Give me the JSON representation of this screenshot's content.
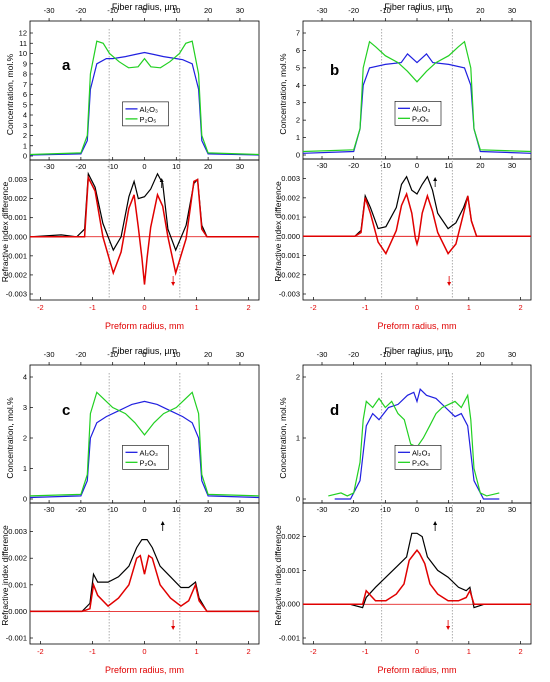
{
  "labels": {
    "fiber_axis": "Fiber radius, µm",
    "preform_axis": "Preform radius, mm",
    "conc_axis": "Concentration, mol.%",
    "ri_axis": "Refractive index difference",
    "al2o3": "Al₂O₃",
    "p2o5": "P₂O₅"
  },
  "colors": {
    "al2o3": "#2020e0",
    "p2o5": "#22d022",
    "ri_black": "#000000",
    "ri_red": "#e00000",
    "preform_axis_text": "#e00000"
  },
  "chart_data": [
    {
      "type": "line",
      "panel": "a",
      "fiber_xlim": [
        -36,
        36
      ],
      "fiber_ticks": [
        -30,
        -20,
        -10,
        0,
        10,
        20,
        30
      ],
      "conc_ylim": [
        0,
        12
      ],
      "conc_ticks": [
        0,
        1,
        2,
        3,
        4,
        5,
        6,
        7,
        8,
        9,
        10,
        11,
        12
      ],
      "series_conc": [
        {
          "name": "Al₂O₃",
          "x": [
            -36,
            -20,
            -18,
            -17,
            -15,
            -12,
            -10,
            -6,
            -3,
            0,
            3,
            6,
            10,
            12,
            15,
            17,
            18,
            20,
            36
          ],
          "y": [
            0.1,
            0.2,
            1.5,
            6.5,
            9.0,
            9.5,
            9.5,
            9.7,
            9.9,
            10.1,
            9.9,
            9.7,
            9.5,
            9.4,
            9.0,
            6.5,
            1.5,
            0.2,
            0.1
          ]
        },
        {
          "name": "P₂O₅",
          "x": [
            -36,
            -20,
            -18,
            -17,
            -15,
            -13,
            -11,
            -8,
            -5,
            -2,
            0,
            2,
            5,
            8,
            11,
            13,
            15,
            17,
            18,
            20,
            36
          ],
          "y": [
            0.15,
            0.3,
            2.0,
            8.0,
            11.2,
            11.0,
            10.0,
            9.2,
            8.6,
            8.7,
            9.5,
            8.7,
            8.6,
            9.2,
            10.0,
            11.0,
            11.2,
            8.0,
            2.0,
            0.3,
            0.15
          ]
        }
      ],
      "preform_xlim": [
        -2.2,
        2.2
      ],
      "preform_ticks": [
        -2,
        -1,
        0,
        1,
        2
      ],
      "ri_ylim": [
        -0.003,
        0.0035
      ],
      "ri_ticks": [
        -0.003,
        -0.002,
        -0.001,
        0.0,
        0.001,
        0.002,
        0.003
      ],
      "series_ri": [
        {
          "x": [
            -2.2,
            -1.6,
            -1.3,
            -1.15,
            -1.08,
            -0.95,
            -0.8,
            -0.6,
            -0.45,
            -0.3,
            -0.2,
            -0.12,
            0,
            0.12,
            0.25,
            0.35,
            0.45,
            0.6,
            0.8,
            0.95,
            1.02,
            1.1,
            1.2,
            2.2
          ],
          "y": [
            0.0,
            0.0001,
            0.0,
            0.0004,
            0.0033,
            0.0026,
            0.0007,
            -0.0007,
            0.0,
            0.0021,
            0.0029,
            0.002,
            0.0021,
            0.0025,
            0.0033,
            0.0028,
            0.0004,
            -0.0007,
            0.0006,
            0.0028,
            0.003,
            0.0006,
            0.0,
            0.0
          ]
        },
        {
          "x": [
            -2.2,
            -1.6,
            -1.3,
            -1.15,
            -1.08,
            -0.95,
            -0.8,
            -0.6,
            -0.45,
            -0.3,
            -0.2,
            -0.12,
            -0.05,
            0,
            0.05,
            0.12,
            0.25,
            0.35,
            0.45,
            0.6,
            0.8,
            0.95,
            1.02,
            1.1,
            1.2,
            2.2
          ],
          "y": [
            0.0,
            0.0,
            0.0,
            0.0,
            0.0031,
            0.0024,
            0.0,
            -0.0019,
            -0.0008,
            0.0015,
            0.0022,
            0.0005,
            -0.0011,
            -0.0025,
            -0.0011,
            0.0005,
            0.0022,
            0.0016,
            0.0,
            -0.0019,
            -0.0001,
            0.0029,
            0.003,
            0.0004,
            0.0,
            0.0
          ]
        }
      ],
      "arrow_up_x": 0.33,
      "arrow_down_x": 0.55
    },
    {
      "type": "line",
      "panel": "b",
      "fiber_xlim": [
        -36,
        36
      ],
      "fiber_ticks": [
        -30,
        -20,
        -10,
        0,
        10,
        20,
        30
      ],
      "conc_ylim": [
        0,
        7
      ],
      "conc_ticks": [
        0,
        1,
        2,
        3,
        4,
        5,
        6,
        7
      ],
      "series_conc": [
        {
          "name": "Al₂O₃",
          "x": [
            -36,
            -20,
            -18,
            -17,
            -15,
            -10,
            -5,
            -3,
            0,
            3,
            5,
            10,
            15,
            17,
            18,
            20,
            36
          ],
          "y": [
            0.1,
            0.2,
            1.5,
            4.0,
            5.0,
            5.2,
            5.3,
            5.8,
            5.3,
            5.8,
            5.3,
            5.2,
            5.0,
            4.0,
            1.5,
            0.2,
            0.1
          ]
        },
        {
          "name": "P₂O₅",
          "x": [
            -36,
            -20,
            -18,
            -17,
            -15,
            -13,
            -10,
            -6,
            -3,
            0,
            3,
            6,
            10,
            13,
            15,
            17,
            18,
            20,
            36
          ],
          "y": [
            0.2,
            0.3,
            1.5,
            5.0,
            6.5,
            6.2,
            5.7,
            5.3,
            4.8,
            4.2,
            4.8,
            5.3,
            5.7,
            6.2,
            6.5,
            5.0,
            1.5,
            0.3,
            0.2
          ]
        }
      ],
      "preform_xlim": [
        -2.2,
        2.2
      ],
      "preform_ticks": [
        -2,
        -1,
        0,
        1,
        2
      ],
      "ri_ylim": [
        -0.003,
        0.0035
      ],
      "ri_ticks": [
        -0.003,
        -0.002,
        -0.001,
        0.0,
        0.001,
        0.002,
        0.003
      ],
      "series_ri": [
        {
          "x": [
            -2.2,
            -1.2,
            -1.08,
            -1.0,
            -0.9,
            -0.75,
            -0.6,
            -0.4,
            -0.3,
            -0.2,
            -0.1,
            0.0,
            0.1,
            0.2,
            0.3,
            0.4,
            0.6,
            0.75,
            0.9,
            0.98,
            1.05,
            1.15,
            2.2
          ],
          "y": [
            0.0,
            0.0,
            0.0003,
            0.0021,
            0.0015,
            0.0004,
            0.0005,
            0.0015,
            0.0027,
            0.0031,
            0.0024,
            0.0022,
            0.0027,
            0.0031,
            0.0024,
            0.0012,
            0.0004,
            0.0007,
            0.0015,
            0.0021,
            0.0008,
            0.0,
            0.0
          ]
        },
        {
          "x": [
            -2.2,
            -1.2,
            -1.08,
            -1.0,
            -0.9,
            -0.75,
            -0.6,
            -0.4,
            -0.3,
            -0.2,
            -0.1,
            -0.03,
            0,
            0.03,
            0.1,
            0.2,
            0.3,
            0.4,
            0.6,
            0.75,
            0.9,
            0.98,
            1.05,
            1.15,
            2.2
          ],
          "y": [
            0.0,
            0.0,
            0.0002,
            0.002,
            0.0012,
            -0.0003,
            -0.0009,
            0.0003,
            0.0016,
            0.0022,
            0.0012,
            -0.0001,
            -0.0004,
            -0.0001,
            0.0012,
            0.0021,
            0.0013,
            0.0002,
            -0.0009,
            -0.0004,
            0.0012,
            0.0021,
            0.0008,
            0.0,
            0.0
          ]
        }
      ],
      "arrow_up_x": 0.35,
      "arrow_down_x": 0.62
    },
    {
      "type": "line",
      "panel": "c",
      "fiber_xlim": [
        -36,
        36
      ],
      "fiber_ticks": [
        -30,
        -20,
        -10,
        0,
        10,
        20,
        30
      ],
      "conc_ylim": [
        0,
        4
      ],
      "conc_ticks": [
        0,
        1,
        2,
        3,
        4
      ],
      "series_conc": [
        {
          "name": "Al₂O₃",
          "x": [
            -36,
            -20,
            -18,
            -17,
            -15,
            -12,
            -8,
            -4,
            0,
            4,
            8,
            12,
            15,
            17,
            18,
            20,
            36
          ],
          "y": [
            0.05,
            0.1,
            0.6,
            2.0,
            2.5,
            2.7,
            2.9,
            3.1,
            3.2,
            3.1,
            2.9,
            2.7,
            2.5,
            2.0,
            0.6,
            0.1,
            0.05
          ]
        },
        {
          "name": "P₂O₅",
          "x": [
            -36,
            -20,
            -18,
            -17,
            -15,
            -13,
            -10,
            -6,
            -3,
            0,
            3,
            6,
            10,
            13,
            15,
            17,
            18,
            20,
            36
          ],
          "y": [
            0.1,
            0.15,
            0.8,
            2.8,
            3.5,
            3.3,
            3.0,
            2.8,
            2.5,
            2.1,
            2.5,
            2.8,
            3.0,
            3.3,
            3.5,
            2.8,
            0.8,
            0.15,
            0.1
          ]
        }
      ],
      "preform_xlim": [
        -2.2,
        2.2
      ],
      "preform_ticks": [
        -2,
        -1,
        0,
        1,
        2
      ],
      "ri_ylim": [
        -0.001,
        0.0037
      ],
      "ri_ticks": [
        -0.001,
        0.0,
        0.001,
        0.002,
        0.003
      ],
      "series_ri": [
        {
          "x": [
            -2.2,
            -1.2,
            -1.05,
            -0.98,
            -0.9,
            -0.7,
            -0.5,
            -0.3,
            -0.15,
            -0.05,
            0.05,
            0.15,
            0.3,
            0.5,
            0.7,
            0.85,
            0.98,
            1.05,
            1.2,
            2.2
          ],
          "y": [
            0.0,
            0.0,
            0.0003,
            0.0014,
            0.0011,
            0.0011,
            0.0013,
            0.0017,
            0.0024,
            0.0027,
            0.0027,
            0.0024,
            0.0017,
            0.0013,
            0.0009,
            0.0009,
            0.0011,
            0.0005,
            0.0,
            0.0
          ]
        },
        {
          "x": [
            -2.2,
            -1.2,
            -1.05,
            -0.98,
            -0.9,
            -0.7,
            -0.5,
            -0.3,
            -0.15,
            -0.08,
            0,
            0.08,
            0.15,
            0.3,
            0.5,
            0.7,
            0.85,
            0.98,
            1.05,
            1.2,
            2.2
          ],
          "y": [
            0.0,
            0.0,
            0.0001,
            0.001,
            0.0006,
            0.0002,
            0.0005,
            0.001,
            0.002,
            0.0021,
            0.0014,
            0.0021,
            0.002,
            0.001,
            0.0005,
            0.0002,
            0.0004,
            0.001,
            0.0004,
            0.0,
            0.0
          ]
        }
      ],
      "arrow_up_x": 0.35,
      "arrow_down_x": 0.55
    },
    {
      "type": "line",
      "panel": "d",
      "fiber_xlim": [
        -36,
        36
      ],
      "fiber_ticks": [
        -30,
        -20,
        -10,
        0,
        10,
        20,
        30
      ],
      "conc_ylim": [
        0,
        2
      ],
      "conc_ticks": [
        0,
        1,
        2
      ],
      "series_conc": [
        {
          "name": "Al₂O₃",
          "x": [
            -26,
            -21,
            -18,
            -16,
            -14,
            -12,
            -9,
            -6,
            -3,
            -1,
            0,
            1,
            3,
            6,
            9,
            12,
            14,
            16,
            18,
            21,
            26
          ],
          "y": [
            0.0,
            0.0,
            0.3,
            1.2,
            1.4,
            1.3,
            1.5,
            1.55,
            1.7,
            1.75,
            1.6,
            1.8,
            1.7,
            1.65,
            1.5,
            1.35,
            1.4,
            1.2,
            0.3,
            0.0,
            0.0
          ]
        },
        {
          "name": "P₂O₅",
          "x": [
            -28,
            -24,
            -22,
            -20,
            -18,
            -17,
            -16,
            -14,
            -12,
            -10,
            -8,
            -6,
            -4,
            -2,
            0,
            2,
            4,
            6,
            8,
            10,
            12,
            14,
            16,
            17,
            18,
            20,
            22,
            26
          ],
          "y": [
            0.05,
            0.1,
            0.05,
            0.1,
            0.6,
            1.3,
            1.6,
            1.5,
            1.65,
            1.5,
            1.6,
            1.4,
            1.3,
            0.9,
            0.85,
            1.0,
            1.2,
            1.4,
            1.5,
            1.55,
            1.6,
            1.5,
            1.7,
            1.3,
            0.5,
            0.1,
            0.05,
            0.1
          ]
        }
      ],
      "preform_xlim": [
        -2.2,
        2.2
      ],
      "preform_ticks": [
        -2,
        -1,
        0,
        1,
        2
      ],
      "ri_ylim": [
        -0.001,
        0.0027
      ],
      "ri_ticks": [
        -0.001,
        0.0,
        0.001,
        0.002
      ],
      "series_ri": [
        {
          "x": [
            -2.2,
            -1.3,
            -1.05,
            -0.98,
            -0.8,
            -0.6,
            -0.4,
            -0.2,
            -0.1,
            0,
            0.1,
            0.2,
            0.4,
            0.6,
            0.8,
            0.95,
            1.02,
            1.1,
            1.3,
            2.2
          ],
          "y": [
            0.0,
            0.0,
            -0.0001,
            0.0002,
            0.0005,
            0.0008,
            0.0011,
            0.0014,
            0.0021,
            0.0021,
            0.002,
            0.0014,
            0.001,
            0.0008,
            0.0005,
            0.0004,
            0.0005,
            -0.0001,
            0.0,
            0.0
          ]
        },
        {
          "x": [
            -2.2,
            -1.3,
            -1.05,
            -0.98,
            -0.8,
            -0.6,
            -0.4,
            -0.25,
            -0.15,
            -0.05,
            0,
            0.05,
            0.15,
            0.25,
            0.4,
            0.6,
            0.8,
            0.95,
            1.02,
            1.1,
            1.3,
            2.2
          ],
          "y": [
            0.0,
            0.0,
            0.0,
            0.0004,
            0.0001,
            0.0001,
            0.0003,
            0.0006,
            0.0013,
            0.0015,
            0.0016,
            0.0015,
            0.0012,
            0.0006,
            0.0003,
            0.0001,
            0.0001,
            0.0002,
            0.0004,
            0.0,
            0.0,
            0.0
          ]
        }
      ],
      "arrow_up_x": 0.35,
      "arrow_down_x": 0.6
    }
  ]
}
